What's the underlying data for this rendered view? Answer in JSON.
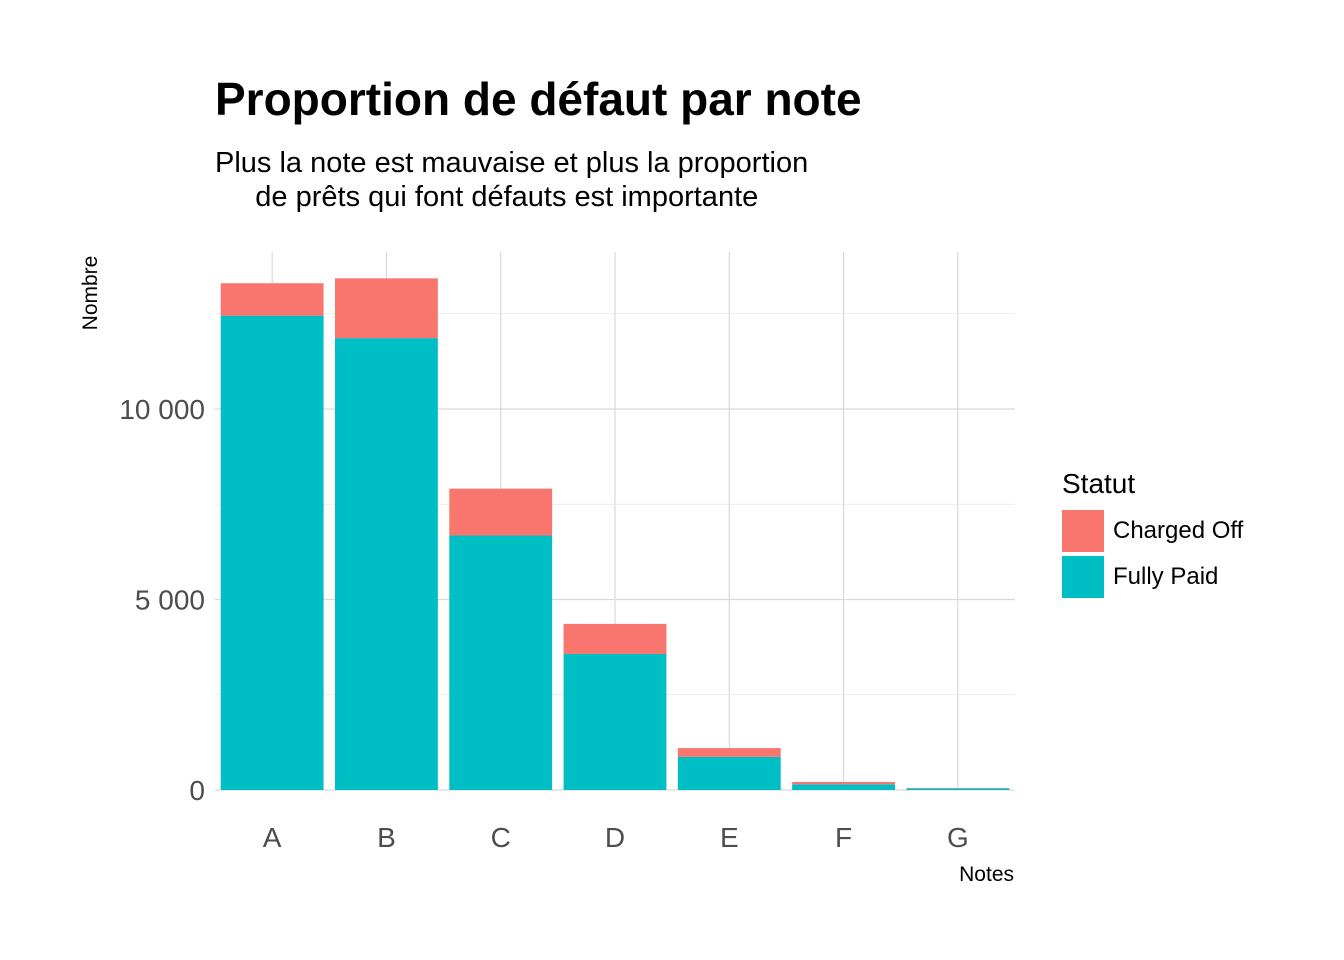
{
  "chart_data": {
    "type": "bar",
    "stacked": true,
    "title": "Proportion de défaut par note",
    "subtitle": "Plus la note est mauvaise et plus la proportion\n     de prêts qui font défauts est importante",
    "xlabel": "Notes",
    "ylabel": "Nombre",
    "categories": [
      "A",
      "B",
      "C",
      "D",
      "E",
      "F",
      "G"
    ],
    "series": [
      {
        "name": "Fully Paid",
        "color": "#00BFC4",
        "values": [
          12450,
          11860,
          6680,
          3570,
          870,
          150,
          40
        ]
      },
      {
        "name": "Charged Off",
        "color": "#F8766D",
        "values": [
          850,
          1570,
          1230,
          790,
          230,
          60,
          10
        ]
      }
    ],
    "yticks": [
      0,
      5000,
      10000
    ],
    "ytick_labels": [
      "0",
      "5 000",
      "10 000"
    ],
    "ylim": [
      0,
      14000
    ],
    "grid": true,
    "legend": {
      "title": "Statut",
      "position": "right",
      "items": [
        {
          "label": "Charged Off",
          "color": "#F8766D"
        },
        {
          "label": "Fully Paid",
          "color": "#00BFC4"
        }
      ]
    }
  }
}
